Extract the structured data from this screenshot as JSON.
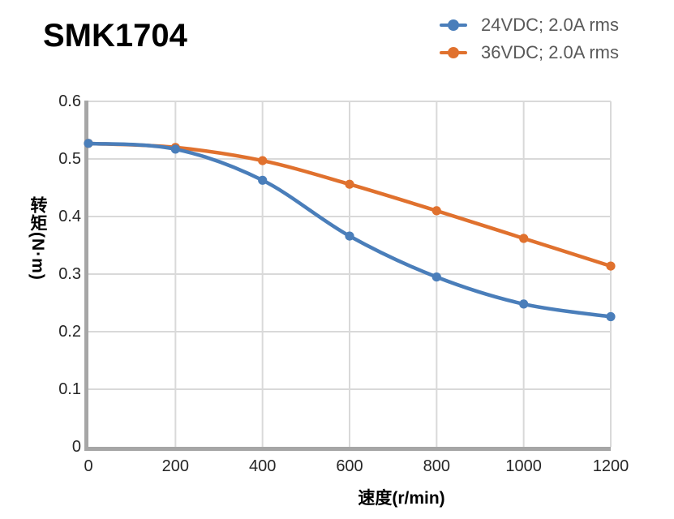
{
  "chart_data": {
    "type": "line",
    "title": "SMK1704",
    "x": [
      0,
      200,
      400,
      600,
      800,
      1000,
      1200
    ],
    "series": [
      {
        "name": "24VDC;  2.0A rms",
        "color": "#4A7EBA",
        "values": [
          0.527,
          0.517,
          0.463,
          0.366,
          0.295,
          0.248,
          0.226
        ]
      },
      {
        "name": "36VDC;  2.0A rms",
        "color": "#E0712E",
        "values": [
          0.527,
          0.52,
          0.497,
          0.456,
          0.41,
          0.362,
          0.314
        ]
      }
    ],
    "xlabel": "速度(r/min)",
    "ylabel": "转矩(N·m)",
    "xlim": [
      0,
      1200
    ],
    "ylim": [
      0,
      0.6
    ],
    "x_ticks": [
      "0",
      "200",
      "400",
      "600",
      "800",
      "1000",
      "1200"
    ],
    "y_ticks": [
      "0",
      "0.1",
      "0.2",
      "0.3",
      "0.4",
      "0.5",
      "0.6"
    ],
    "grid": true,
    "legend_position": "top-right",
    "marker": "circle"
  },
  "colors": {
    "series_24vdc": "#4A7EBA",
    "series_36vdc": "#E0712E",
    "gridline": "#D9D9D9",
    "axis": "#A6A6A6",
    "legend_text": "#595959",
    "tick_text": "#262626",
    "title_text": "#000000",
    "axis_label_text": "#000000",
    "background": "#FFFFFF"
  }
}
